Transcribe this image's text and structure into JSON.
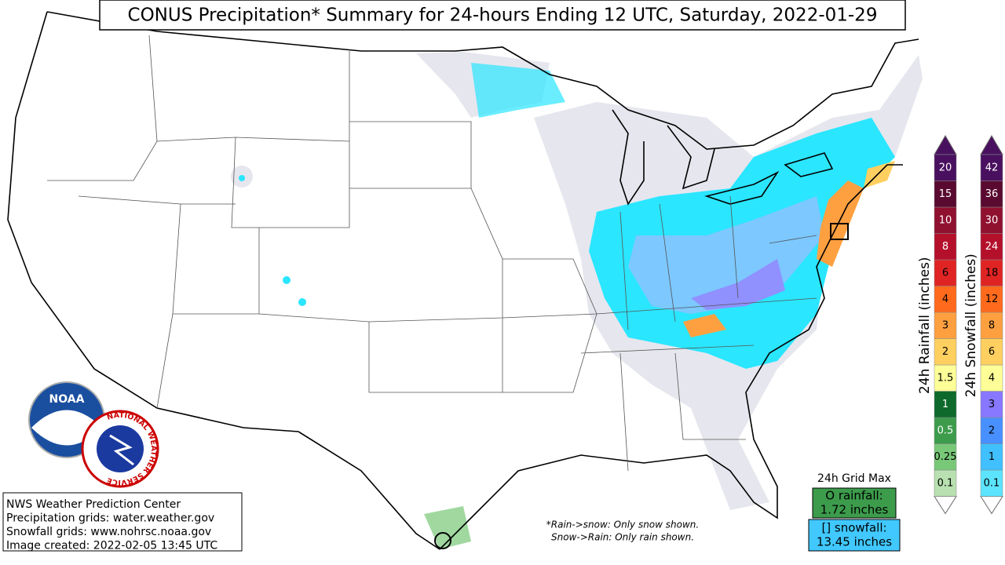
{
  "title": "CONUS Precipitation* Summary for 24-hours Ending 12 UTC, Saturday, 2022-01-29",
  "info": [
    "NWS Weather Prediction Center",
    "Precipitation grids: water.weather.gov",
    "Snowfall grids: www.nohrsc.noaa.gov",
    "Image created: 2022-02-05 13:45 UTC"
  ],
  "notes": [
    "*Rain->snow: Only snow shown.",
    "Snow->Rain: Only rain shown."
  ],
  "grid_max": {
    "heading": "24h Grid Max",
    "rain_label": "O rainfall:",
    "rain_value": "1.72 inches",
    "snow_label": "[] snowfall:",
    "snow_value": "13.45 inches"
  },
  "logos": {
    "noaa": "NOAA",
    "nws": "NATIONAL WEATHER SERVICE"
  },
  "legends": [
    {
      "label": "24h Rainfall (inches)",
      "levels": [
        {
          "value": 0.1,
          "color": "#b8e0b0"
        },
        {
          "value": 0.25,
          "color": "#78c878"
        },
        {
          "value": 0.5,
          "color": "#3c9c4c"
        },
        {
          "value": 1,
          "color": "#0e6a2c"
        },
        {
          "value": 1.5,
          "color": "#ffff98"
        },
        {
          "value": 2,
          "color": "#ffd060"
        },
        {
          "value": 3,
          "color": "#ffa040"
        },
        {
          "value": 4,
          "color": "#ff6a1c"
        },
        {
          "value": 6,
          "color": "#e02424"
        },
        {
          "value": 8,
          "color": "#b4102c"
        },
        {
          "value": 10,
          "color": "#901030"
        },
        {
          "value": 15,
          "color": "#5a0a30"
        },
        {
          "value": 20,
          "color": "#4a1060"
        }
      ]
    },
    {
      "label": "24h Snowfall (inches)",
      "levels": [
        {
          "value": 0.1,
          "color": "#5ce4ff"
        },
        {
          "value": 1,
          "color": "#40c0ff"
        },
        {
          "value": 2,
          "color": "#4890ff"
        },
        {
          "value": 3,
          "color": "#8878ff"
        },
        {
          "value": 4,
          "color": "#ffff98"
        },
        {
          "value": 6,
          "color": "#ffd060"
        },
        {
          "value": 8,
          "color": "#ffa040"
        },
        {
          "value": 12,
          "color": "#ff6a1c"
        },
        {
          "value": 18,
          "color": "#e02424"
        },
        {
          "value": 24,
          "color": "#b4102c"
        },
        {
          "value": 30,
          "color": "#901030"
        },
        {
          "value": 36,
          "color": "#5a0a30"
        },
        {
          "value": 42,
          "color": "#4a1060"
        }
      ]
    }
  ]
}
